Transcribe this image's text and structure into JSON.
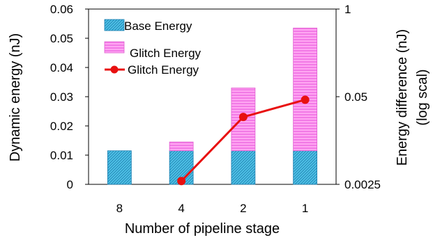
{
  "chart_data": {
    "type": "bar",
    "title": "",
    "categories": [
      "8",
      "4",
      "2",
      "1"
    ],
    "xlabel": "Number of pipeline stage",
    "ylabel": "Dynamic energy (nJ)",
    "ylim": [
      0,
      0.06
    ],
    "yticks": [
      "0",
      "0.01",
      "0.02",
      "0.03",
      "0.04",
      "0.05",
      "0.06"
    ],
    "y2label_line1": "Energy difference (nJ)",
    "y2label_line2": "(log scal)",
    "y2scale": "log",
    "y2lim": [
      0.0025,
      1
    ],
    "y2ticks": [
      {
        "label": "1",
        "value": 1
      },
      {
        "label": "0.05",
        "value": 0.05
      },
      {
        "label": "0.0025",
        "value": 0.0025
      }
    ],
    "series": [
      {
        "name": "Base Energy",
        "kind": "bar",
        "stacked": true,
        "color": "#4fc3e8",
        "values": [
          0.0115,
          0.0115,
          0.0115,
          0.0115
        ]
      },
      {
        "name": "Glitch Energy",
        "kind": "bar",
        "stacked": true,
        "color": "#ff88ee",
        "values": [
          0,
          0.003,
          0.0215,
          0.042
        ]
      },
      {
        "name": "Glitch Energy",
        "kind": "line",
        "axis": "secondary",
        "color": "#e81010",
        "values": [
          null,
          0.0028,
          0.025,
          0.045
        ]
      }
    ],
    "legend": "top-left",
    "grid": false
  }
}
